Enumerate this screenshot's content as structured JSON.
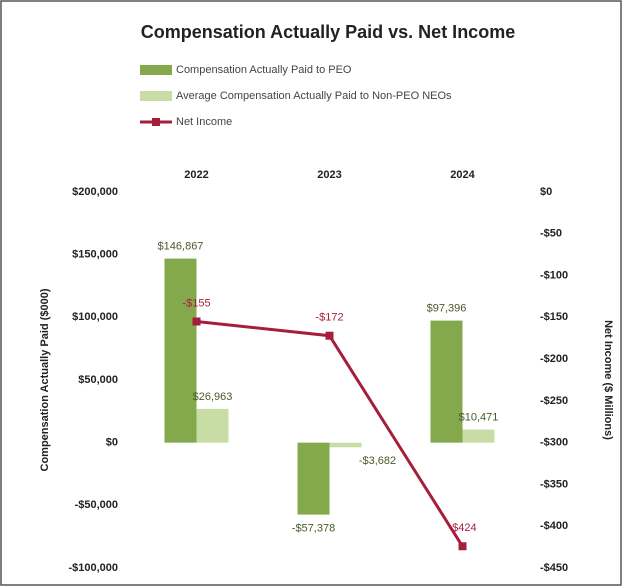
{
  "chart_data": {
    "type": "bar",
    "title": "Compensation Actually Paid vs. Net Income",
    "categories": [
      "2022",
      "2023",
      "2024"
    ],
    "ylabel": "Compensation Actually Paid ($000)",
    "y2label": "Net Income ($ Millions)",
    "ylim": [
      -100000,
      200000
    ],
    "yticks": [
      {
        "value": 200000,
        "label": "$200,000"
      },
      {
        "value": 150000,
        "label": "$150,000"
      },
      {
        "value": 100000,
        "label": "$100,000"
      },
      {
        "value": 50000,
        "label": "$50,000"
      },
      {
        "value": 0,
        "label": "$0"
      },
      {
        "value": -50000,
        "label": "-$50,000"
      },
      {
        "value": -100000,
        "label": "-$100,000"
      }
    ],
    "y2lim": [
      -450,
      0
    ],
    "y2ticks": [
      {
        "value": 0,
        "label": "$0"
      },
      {
        "value": -50,
        "label": "-$50"
      },
      {
        "value": -100,
        "label": "-$100"
      },
      {
        "value": -150,
        "label": "-$150"
      },
      {
        "value": -200,
        "label": "-$200"
      },
      {
        "value": -250,
        "label": "-$250"
      },
      {
        "value": -300,
        "label": "-$300"
      },
      {
        "value": -350,
        "label": "-$350"
      },
      {
        "value": -400,
        "label": "-$400"
      },
      {
        "value": -450,
        "label": "-$450"
      }
    ],
    "series": [
      {
        "name": "Compensation Actually Paid to PEO",
        "color": "#84a84c",
        "values": [
          146867,
          -57378,
          97396
        ],
        "value_labels": [
          "$146,867",
          "-$57,378",
          "$97,396"
        ]
      },
      {
        "name": "Average Compensation Actually Paid to Non-PEO NEOs",
        "color": "#c8dca6",
        "values": [
          26963,
          -3682,
          10471
        ],
        "value_labels": [
          "$26,963",
          "-$3,682",
          "$10,471"
        ]
      },
      {
        "name": "Net Income",
        "color": "#a51f3c",
        "type": "line",
        "axis": "y2",
        "values": [
          -155,
          -172,
          -424
        ],
        "value_labels": [
          "-$155",
          "-$172",
          "-$424"
        ]
      }
    ]
  }
}
